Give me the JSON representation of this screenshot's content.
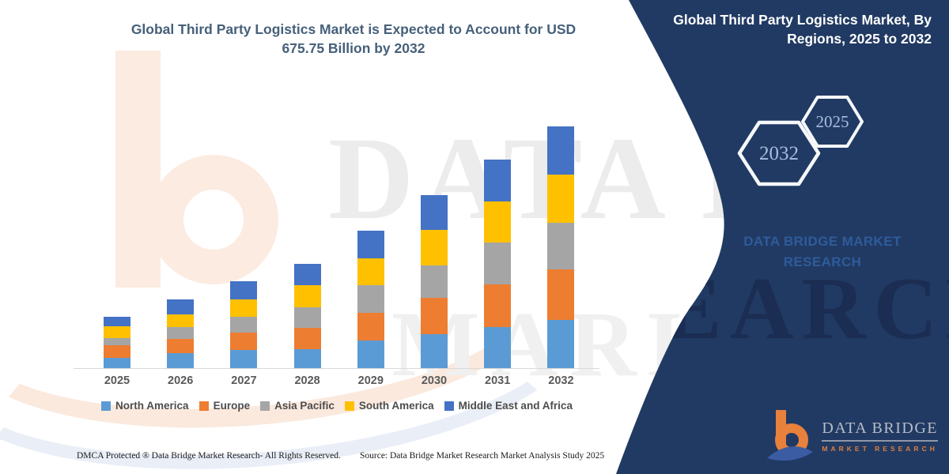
{
  "header": {
    "chart_title": "Global Third Party Logistics Market is Expected to Account for USD 675.75 Billion by 2032"
  },
  "panel": {
    "title": "Global Third Party Logistics Market, By Regions, 2025 to 2032",
    "hexagon_large_label": "2032",
    "hexagon_small_label": "2025",
    "watermark_text": "DATA BRIDGE MARKET RESEARCH",
    "background_color": "#213a63"
  },
  "logo": {
    "name": "DATA BRIDGE",
    "subtitle": "MARKET RESEARCH"
  },
  "footer": {
    "left": "DMCA Protected ® Data Bridge Market Research-  All Rights Reserved.",
    "right": "Source: Data Bridge Market Research  Market Analysis Study 2025"
  },
  "watermarks": {
    "row1": "DATA BRI",
    "row2": "MARKE",
    "panel_word": "EARCH"
  },
  "chart_data": {
    "type": "bar",
    "stacked": true,
    "title": "Global Third Party Logistics Market is Expected to Account for USD 675.75 Billion by 2032",
    "unit": "USD Billion",
    "categories": [
      "2025",
      "2026",
      "2027",
      "2028",
      "2029",
      "2030",
      "2031",
      "2032"
    ],
    "series": [
      {
        "name": "North America",
        "color": "#5B9BD5",
        "values": [
          28,
          41,
          50,
          52,
          77,
          95,
          114,
          134
        ]
      },
      {
        "name": "Europe",
        "color": "#ED7D31",
        "values": [
          35,
          41,
          50,
          61,
          78,
          101,
          120,
          141.75
        ]
      },
      {
        "name": "Asia Pacific",
        "color": "#A5A5A5",
        "values": [
          20,
          33,
          43,
          57,
          76,
          91,
          117,
          130
        ]
      },
      {
        "name": "South America",
        "color": "#FFC000",
        "values": [
          33,
          35,
          50,
          61,
          77,
          99,
          114,
          135
        ]
      },
      {
        "name": "Middle East and Africa",
        "color": "#4472C4",
        "values": [
          28,
          43,
          50,
          61,
          77,
          98,
          117,
          135
        ]
      }
    ],
    "xlabel": "",
    "ylabel": "",
    "ylim": [
      0,
      700
    ],
    "grid": false,
    "y_axis_visible": false,
    "legend_position": "bottom"
  }
}
